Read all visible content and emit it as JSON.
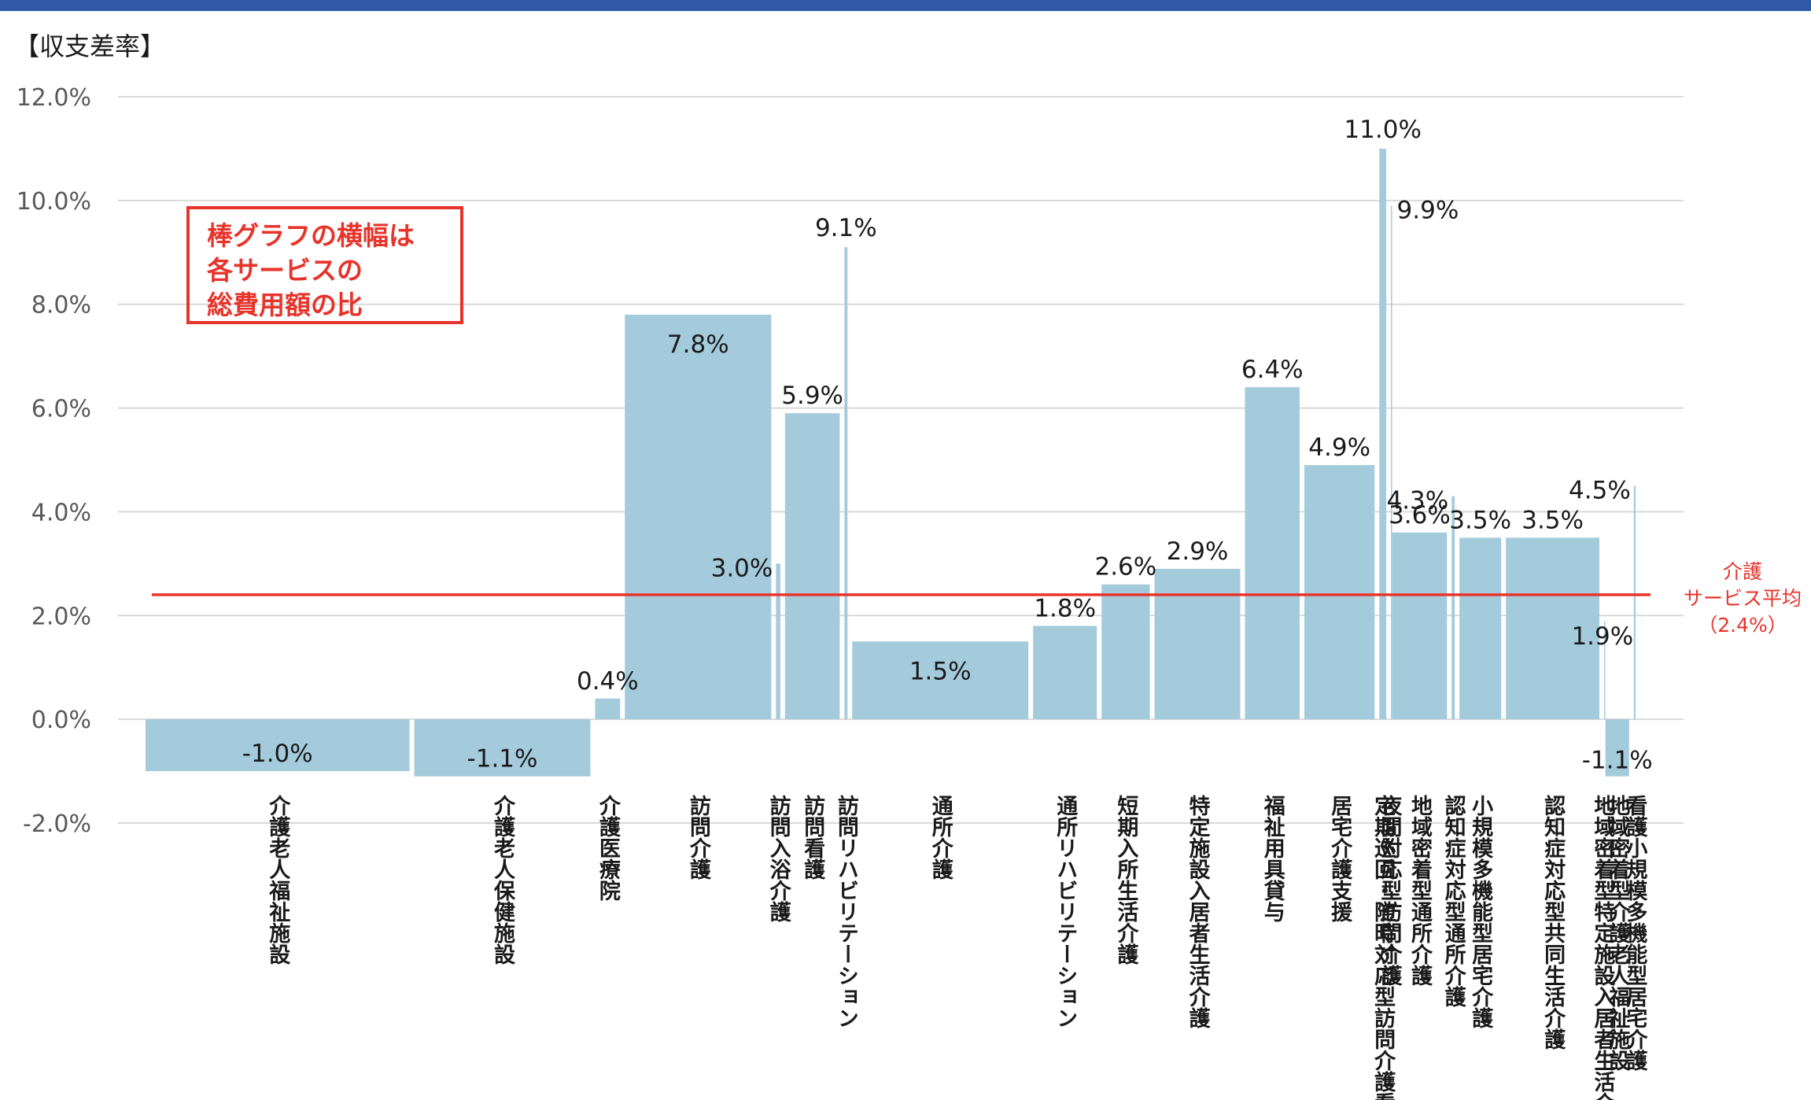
{
  "chart_data": {
    "type": "bar",
    "ylabel": "【収支差率】",
    "ylim": [
      -2,
      12
    ],
    "yticks": [
      "12.0%",
      "10.0%",
      "8.0%",
      "6.0%",
      "4.0%",
      "2.0%",
      "0.0%",
      "-2.0%"
    ],
    "grid": true,
    "bar_color": "#a4cbdc",
    "note_lines": [
      "棒グラフの横幅は",
      "各サービスの",
      "総費用額の比"
    ],
    "average": {
      "value": 2.4,
      "label_lines": [
        "介護",
        "サービス平均",
        "（2.4%）"
      ],
      "color": "#e8332a"
    },
    "categories": [
      "介護老人福祉施設",
      "介護老人保健施設",
      "介護医療院",
      "訪問介護",
      "訪問入浴介護",
      "訪問看護",
      "訪問リハビリテーション",
      "通所介護",
      "通所リハビリテーション",
      "短期入所生活介護",
      "特定施設入居者生活介護",
      "福祉用具貸与",
      "居宅介護支援",
      "定期巡回・随時対応型訪問介護看護",
      "夜間対応型訪問介護",
      "地域密着型通所介護",
      "認知症対応型通所介護",
      "小規模多機能型居宅介護",
      "認知症対応型共同生活介護",
      "地域密着型特定施設入居者生活介護",
      "地域密着型介護老人福祉施設",
      "看護小規模多機能型居宅介護"
    ],
    "values": [
      -1.0,
      -1.1,
      0.4,
      7.8,
      3.0,
      5.9,
      9.1,
      1.5,
      1.8,
      2.6,
      2.9,
      6.4,
      4.9,
      11.0,
      9.9,
      3.6,
      4.3,
      3.5,
      3.5,
      1.9,
      -1.1,
      4.5
    ],
    "value_labels": [
      "-1.0%",
      "-1.1%",
      "0.4%",
      "7.8%",
      "3.0%",
      "5.9%",
      "9.1%",
      "1.5%",
      "1.8%",
      "2.6%",
      "2.9%",
      "6.4%",
      "4.9%",
      "11.0%",
      "9.9%",
      "3.6%",
      "4.3%",
      "3.5%",
      "3.5%",
      "1.9%",
      "-1.1%",
      "4.5%"
    ],
    "cost_share": [
      20.8,
      14.0,
      2.3,
      11.7,
      0.7,
      4.6,
      0.6,
      14.0,
      5.3,
      4.1,
      7.0,
      4.6,
      5.8,
      0.9,
      0.1,
      4.6,
      0.6,
      3.6,
      7.6,
      0.1,
      2.2,
      0.5
    ]
  }
}
